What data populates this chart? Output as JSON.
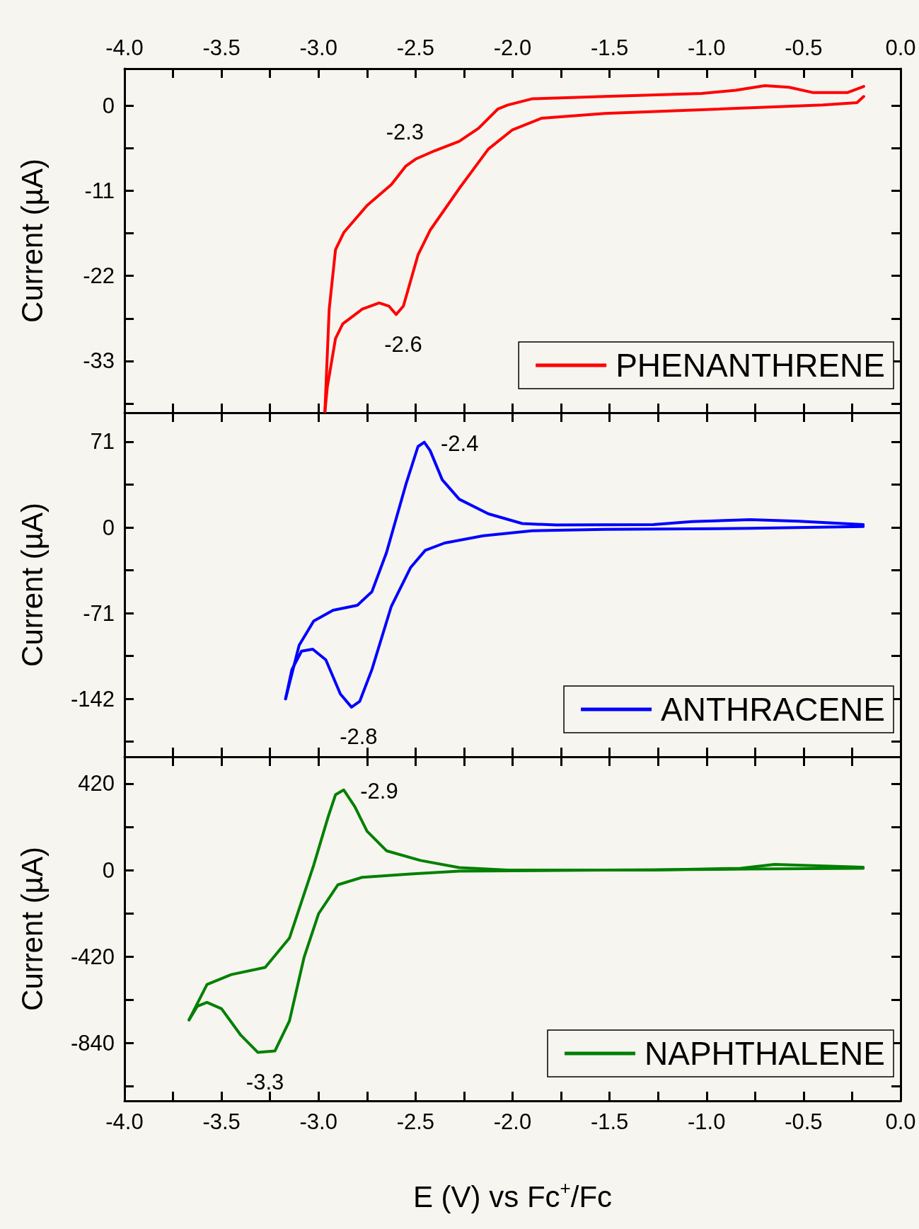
{
  "chart_data": [
    {
      "type": "line",
      "ylabel": "Current (µA)",
      "legend": "bottom right",
      "line_style": "solid",
      "tick_labels": "y",
      "series": [
        {
          "name": "PHENANTHRENE",
          "color": "#ff0000",
          "x": [
            -0.19,
            -0.275,
            -0.45,
            -0.575,
            -0.7,
            -0.85,
            -1.025,
            -1.525,
            -1.9,
            -2.025,
            -2.075,
            -2.175,
            -2.275,
            -2.4,
            -2.5,
            -2.55,
            -2.625,
            -2.75,
            -2.87,
            -2.9125,
            -2.945,
            -2.9675
          ],
          "values": [
            2.5,
            1.7,
            1.7,
            2.4,
            2.6,
            2.0,
            1.6,
            1.2,
            0.9,
            0.1,
            -0.4,
            -2.9,
            -4.6,
            -5.8,
            -6.9,
            -7.8,
            -10.2,
            -12.9,
            -16.4,
            -18.6,
            -26.3,
            -39.7
          ]
        },
        {
          "color": "#ff0000",
          "x": [
            -2.9675,
            -2.955,
            -2.9125,
            -2.875,
            -2.775,
            -2.6875,
            -2.6375,
            -2.6,
            -2.5625,
            -2.4875,
            -2.425,
            -2.275,
            -2.125,
            -2.0,
            -1.85,
            -1.525,
            -1.025,
            -0.4,
            -0.225,
            -0.19
          ],
          "values": [
            -39.7,
            -36.4,
            -30.1,
            -28.2,
            -26.3,
            -25.5,
            -25.9,
            -27.0,
            -25.9,
            -19.3,
            -16.1,
            -10.7,
            -5.6,
            -3.1,
            -1.6,
            -1.0,
            -0.5,
            0.1,
            0.4,
            1.2
          ]
        }
      ],
      "xlim": [
        -4,
        0
      ],
      "xticks": [
        {
          "value": -4,
          "label": null
        },
        {
          "value": -3.75,
          "label": null
        },
        {
          "value": -3.5,
          "label": null
        },
        {
          "value": -3.25,
          "label": null
        },
        {
          "value": -3,
          "label": null
        },
        {
          "value": -2.75,
          "label": null
        },
        {
          "value": -2.5,
          "label": null
        },
        {
          "value": -2.25,
          "label": null
        },
        {
          "value": -2,
          "label": null
        },
        {
          "value": -1.75,
          "label": null
        },
        {
          "value": -1.5,
          "label": null
        },
        {
          "value": -1.25,
          "label": null
        },
        {
          "value": -1,
          "label": null
        },
        {
          "value": -0.75,
          "label": null
        },
        {
          "value": -0.5,
          "label": null
        },
        {
          "value": -0.25,
          "label": null
        },
        {
          "value": 0,
          "label": null
        }
      ],
      "x2lim": [
        -4,
        0
      ],
      "x2ticks": [
        {
          "value": -4,
          "label": "-4.0"
        },
        {
          "value": -3.75,
          "label": null
        },
        -3.5,
        {
          "value": -3.25,
          "label": null
        },
        {
          "value": -3,
          "label": "-3.0"
        },
        {
          "value": -2.75,
          "label": null
        },
        -2.5,
        {
          "value": -2.25,
          "label": null
        },
        {
          "value": -2,
          "label": "-2.0"
        },
        {
          "value": -1.75,
          "label": null
        },
        -1.5,
        {
          "value": -1.25,
          "label": null
        },
        {
          "value": -1,
          "label": "-1.0"
        },
        {
          "value": -0.75,
          "label": null
        },
        -0.5,
        {
          "value": -0.25,
          "label": null
        },
        {
          "value": 0,
          "label": "0.0"
        }
      ],
      "ylim": [
        -39.7,
        4.8
      ],
      "yticks": [
        0,
        {
          "value": -5.5,
          "label": null
        },
        -11,
        {
          "value": -16.5,
          "label": null
        },
        -22,
        {
          "value": -27.5,
          "label": null
        },
        -33,
        {
          "value": -38.5,
          "label": null
        }
      ],
      "annotations": [
        {
          "text": "-2.3",
          "x": -2.5,
          "y": -6.9
        },
        {
          "text": "-2.6",
          "x": -2.6,
          "y": -27.0
        }
      ]
    },
    {
      "type": "line",
      "ylabel": "Current (µA)",
      "legend": "bottom right",
      "line_style": "solid",
      "tick_labels": "y",
      "series": [
        {
          "name": "ANTHRACENE",
          "color": "#0000ff",
          "x": [
            -0.1925,
            -0.525,
            -0.775,
            -1.075,
            -1.275,
            -1.775,
            -1.95,
            -2.125,
            -2.275,
            -2.3625,
            -2.425,
            -2.455,
            -2.4875,
            -2.55,
            -2.65,
            -2.725,
            -2.8,
            -2.925,
            -3.025,
            -3.1,
            -3.17
          ],
          "values": [
            2.4,
            5.2,
            6.5,
            4.8,
            2.4,
            2.0,
            3.2,
            11.3,
            23.4,
            39.5,
            63.7,
            70.6,
            67.0,
            35.5,
            -21.0,
            -53.3,
            -64.5,
            -68.6,
            -77.5,
            -97.6,
            -142.0
          ]
        },
        {
          "color": "#0000ff",
          "x": [
            -3.17,
            -3.1375,
            -3.0875,
            -3.03,
            -2.9625,
            -2.8875,
            -2.83,
            -2.7875,
            -2.725,
            -2.625,
            -2.525,
            -2.45,
            -2.35,
            -2.15,
            -1.9,
            -1.525,
            -0.775,
            -0.1925
          ],
          "values": [
            -142.0,
            -117.8,
            -102.5,
            -100.9,
            -109.7,
            -138.0,
            -148.9,
            -144.0,
            -117.8,
            -65.4,
            -33.1,
            -19.0,
            -12.9,
            -6.9,
            -2.8,
            -1.6,
            -0.8,
            0.8
          ]
        }
      ],
      "xlim": [
        -4,
        0
      ],
      "xticks": [
        {
          "value": -4,
          "label": null
        },
        {
          "value": -3.75,
          "label": null
        },
        {
          "value": -3.5,
          "label": null
        },
        {
          "value": -3.25,
          "label": null
        },
        {
          "value": -3,
          "label": null
        },
        {
          "value": -2.75,
          "label": null
        },
        {
          "value": -2.5,
          "label": null
        },
        {
          "value": -2.25,
          "label": null
        },
        {
          "value": -2,
          "label": null
        },
        {
          "value": -1.75,
          "label": null
        },
        {
          "value": -1.5,
          "label": null
        },
        {
          "value": -1.25,
          "label": null
        },
        {
          "value": -1,
          "label": null
        },
        {
          "value": -0.75,
          "label": null
        },
        {
          "value": -0.5,
          "label": null
        },
        {
          "value": -0.25,
          "label": null
        },
        {
          "value": 0,
          "label": null
        }
      ],
      "ylim": [
        -190,
        95
      ],
      "yticks": [
        71,
        {
          "value": 35.5,
          "label": null
        },
        0,
        {
          "value": -35.5,
          "label": null
        },
        -71,
        {
          "value": -106.5,
          "label": null
        },
        -142,
        {
          "value": -177.5,
          "label": null
        }
      ],
      "annotations": [
        {
          "text": "-2.4",
          "x": -2.455,
          "y": 70.6
        },
        {
          "text": "-2.8",
          "x": -2.83,
          "y": -148.9
        }
      ]
    },
    {
      "type": "line",
      "ylabel": "Current (µA)",
      "xlabel": "E (V) vs Fc$^{+}$/Fc",
      "legend": "bottom right",
      "line_style": "solid",
      "series": [
        {
          "name": "NAPHTHALENE",
          "color": "#008000",
          "x": [
            -0.1925,
            -0.65,
            -0.825,
            -1.275,
            -2.025,
            -2.275,
            -2.475,
            -2.65,
            -2.75,
            -2.8125,
            -2.87,
            -2.9125,
            -2.95,
            -3.025,
            -3.15,
            -3.275,
            -3.45,
            -3.575,
            -3.6675
          ],
          "values": [
            14,
            28,
            9,
            0,
            0,
            12,
            47,
            94,
            189,
            307,
            389,
            366,
            260,
            24,
            -330,
            -472,
            -507,
            -555,
            -727
          ]
        },
        {
          "color": "#008000",
          "x": [
            -3.6675,
            -3.625,
            -3.575,
            -3.5,
            -3.4,
            -3.3125,
            -3.225,
            -3.15,
            -3.075,
            -3.0,
            -2.9,
            -2.775,
            -2.525,
            -2.275,
            -1.525,
            -0.775,
            -0.1925
          ],
          "values": [
            -727,
            -661,
            -642,
            -673,
            -802,
            -885,
            -878,
            -732,
            -425,
            -212,
            -71,
            -35,
            -19,
            -5,
            0,
            5,
            9
          ]
        }
      ],
      "xlim": [
        -4,
        0
      ],
      "xticks": [
        {
          "value": -4,
          "label": "-4.0"
        },
        {
          "value": -3.75,
          "label": null
        },
        -3.5,
        {
          "value": -3.25,
          "label": null
        },
        {
          "value": -3,
          "label": "-3.0"
        },
        {
          "value": -2.75,
          "label": null
        },
        -2.5,
        {
          "value": -2.25,
          "label": null
        },
        {
          "value": -2,
          "label": "-2.0"
        },
        {
          "value": -1.75,
          "label": null
        },
        -1.5,
        {
          "value": -1.25,
          "label": null
        },
        {
          "value": -1,
          "label": "-1.0"
        },
        {
          "value": -0.75,
          "label": null
        },
        -0.5,
        {
          "value": -0.25,
          "label": null
        },
        {
          "value": 0,
          "label": "0.0"
        }
      ],
      "ylim": [
        -1120,
        550
      ],
      "yticks": [
        420,
        {
          "value": 210,
          "label": null
        },
        0,
        {
          "value": -210,
          "label": null
        },
        -420,
        {
          "value": -630,
          "label": null
        },
        -840,
        {
          "value": -1050,
          "label": null
        }
      ],
      "annotations": [
        {
          "text": "-2.9",
          "x": -2.87,
          "y": 389
        },
        {
          "text": "-3.3",
          "x": -3.3125,
          "y": -885
        }
      ]
    }
  ]
}
